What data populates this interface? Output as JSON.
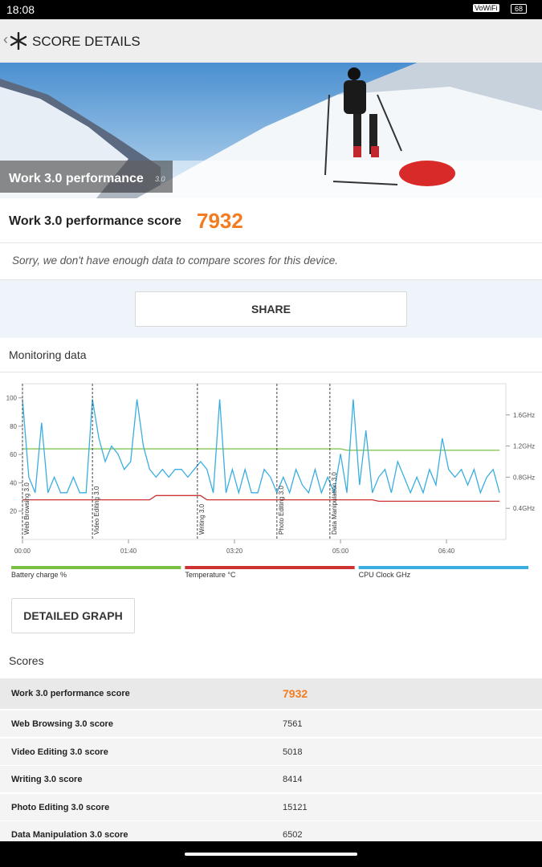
{
  "status_bar": {
    "time": "18:08",
    "network": "VoWiFi",
    "battery": "68"
  },
  "header": {
    "title": "SCORE DETAILS"
  },
  "banner": {
    "title": "Work 3.0 performance",
    "version": "3.0"
  },
  "score": {
    "label": "Work 3.0 performance score",
    "value": 7932
  },
  "notice": "Sorry, we don't have enough data to compare scores for this device.",
  "share_button": "SHARE",
  "chart_data": {
    "type": "line",
    "title": "Monitoring data",
    "x": [
      0,
      6,
      12,
      18,
      24,
      30,
      36,
      42,
      48,
      54,
      60,
      66,
      72,
      78,
      84,
      90,
      96,
      102,
      108,
      114,
      120,
      126,
      132,
      138,
      144,
      150,
      156,
      162,
      168,
      174,
      180,
      186,
      192,
      198,
      204,
      210,
      216,
      222,
      228,
      234,
      240,
      246,
      252,
      258,
      264,
      270,
      276,
      282,
      288,
      294,
      300,
      306,
      312,
      318,
      324,
      330,
      336,
      342,
      348,
      354,
      360,
      366,
      372,
      378,
      384,
      390,
      396,
      402,
      408,
      414,
      420,
      426,
      432,
      438,
      444,
      450
    ],
    "xlim": [
      0,
      456
    ],
    "xticks": [
      {
        "value": 0,
        "label": "00:00"
      },
      {
        "value": 100,
        "label": "01:40"
      },
      {
        "value": 200,
        "label": "03:20"
      },
      {
        "value": 300,
        "label": "05:00"
      },
      {
        "value": 400,
        "label": "06:40"
      }
    ],
    "ylim": [
      0,
      110
    ],
    "yticks": [
      20,
      40,
      60,
      80,
      100
    ],
    "y2lim": [
      0,
      2
    ],
    "y2ticks": [
      {
        "value": 0.4,
        "label": "0.4GHz"
      },
      {
        "value": 0.8,
        "label": "0.8GHz"
      },
      {
        "value": 1.2,
        "label": "1.2GHz"
      },
      {
        "value": 1.6,
        "label": "1.6GHz"
      }
    ],
    "grid": false,
    "markers": [
      {
        "x": 0,
        "label": "Web Browsing 3.0"
      },
      {
        "x": 66,
        "label": "Video Editing 3.0"
      },
      {
        "x": 165,
        "label": "Writing 3.0"
      },
      {
        "x": 240,
        "label": "Photo Editing 3.0"
      },
      {
        "x": 290,
        "label": "Data Manipulation 3.0"
      }
    ],
    "series": [
      {
        "name": "Battery charge %",
        "color": "#7ac143",
        "values": [
          64,
          64,
          64,
          64,
          64,
          64,
          64,
          64,
          64,
          64,
          64,
          64,
          64,
          64,
          64,
          64,
          64,
          64,
          64,
          64,
          64,
          64,
          64,
          64,
          64,
          64,
          64,
          64,
          64,
          64,
          64,
          64,
          64,
          64,
          64,
          64,
          64,
          64,
          64,
          64,
          64,
          64,
          64,
          64,
          64,
          64,
          64,
          64,
          64,
          64,
          64,
          63,
          63,
          63,
          63,
          63,
          63,
          63,
          63,
          63,
          63,
          63,
          63,
          63,
          63,
          63,
          63,
          63,
          63,
          63,
          63,
          63,
          63,
          63,
          63,
          63
        ]
      },
      {
        "name": "Temperature °C",
        "color": "#cc3333",
        "values": [
          28,
          28,
          28,
          28,
          28,
          28,
          28,
          28,
          28,
          28,
          28,
          28,
          28,
          28,
          28,
          28,
          28,
          28,
          28,
          28,
          28,
          31,
          31,
          31,
          31,
          31,
          31,
          31,
          31,
          28,
          28,
          28,
          28,
          28,
          28,
          28,
          28,
          28,
          28,
          28,
          28,
          28,
          28,
          28,
          28,
          28,
          28,
          28,
          28,
          28,
          28,
          28,
          28,
          28,
          28,
          28,
          27,
          27,
          27,
          27,
          27,
          27,
          27,
          27,
          27,
          27,
          27,
          27,
          27,
          27,
          27,
          27,
          27,
          27,
          27,
          27
        ]
      },
      {
        "name": "CPU Clock GHz",
        "color": "#3aaee0",
        "axis": "y2",
        "values": [
          1.8,
          0.8,
          0.6,
          1.5,
          0.6,
          0.8,
          0.6,
          0.6,
          0.8,
          0.6,
          0.6,
          1.8,
          1.3,
          1.0,
          1.2,
          1.1,
          0.9,
          1.0,
          1.8,
          1.2,
          0.9,
          0.8,
          0.9,
          0.8,
          0.9,
          0.9,
          0.8,
          0.9,
          1.0,
          0.9,
          0.6,
          1.8,
          0.6,
          0.9,
          0.6,
          0.9,
          0.6,
          0.6,
          0.9,
          0.8,
          0.6,
          0.8,
          0.6,
          0.9,
          0.7,
          0.6,
          0.9,
          0.6,
          0.8,
          0.6,
          1.1,
          0.6,
          1.8,
          0.7,
          1.4,
          0.6,
          0.8,
          0.9,
          0.6,
          1.0,
          0.8,
          0.6,
          0.8,
          0.6,
          0.9,
          0.7,
          1.3,
          0.9,
          0.8,
          0.9,
          0.7,
          0.9,
          0.6,
          0.8,
          0.9,
          0.6
        ]
      }
    ]
  },
  "detail_button": "DETAILED GRAPH",
  "scores": {
    "title": "Scores",
    "rows": [
      [
        "Work 3.0 performance score",
        7932
      ],
      [
        "Web Browsing 3.0 score",
        7561
      ],
      [
        "Video Editing 3.0 score",
        5018
      ],
      [
        "Writing 3.0 score",
        8414
      ],
      [
        "Photo Editing 3.0 score",
        15121
      ],
      [
        "Data Manipulation 3.0 score",
        6502
      ]
    ]
  }
}
